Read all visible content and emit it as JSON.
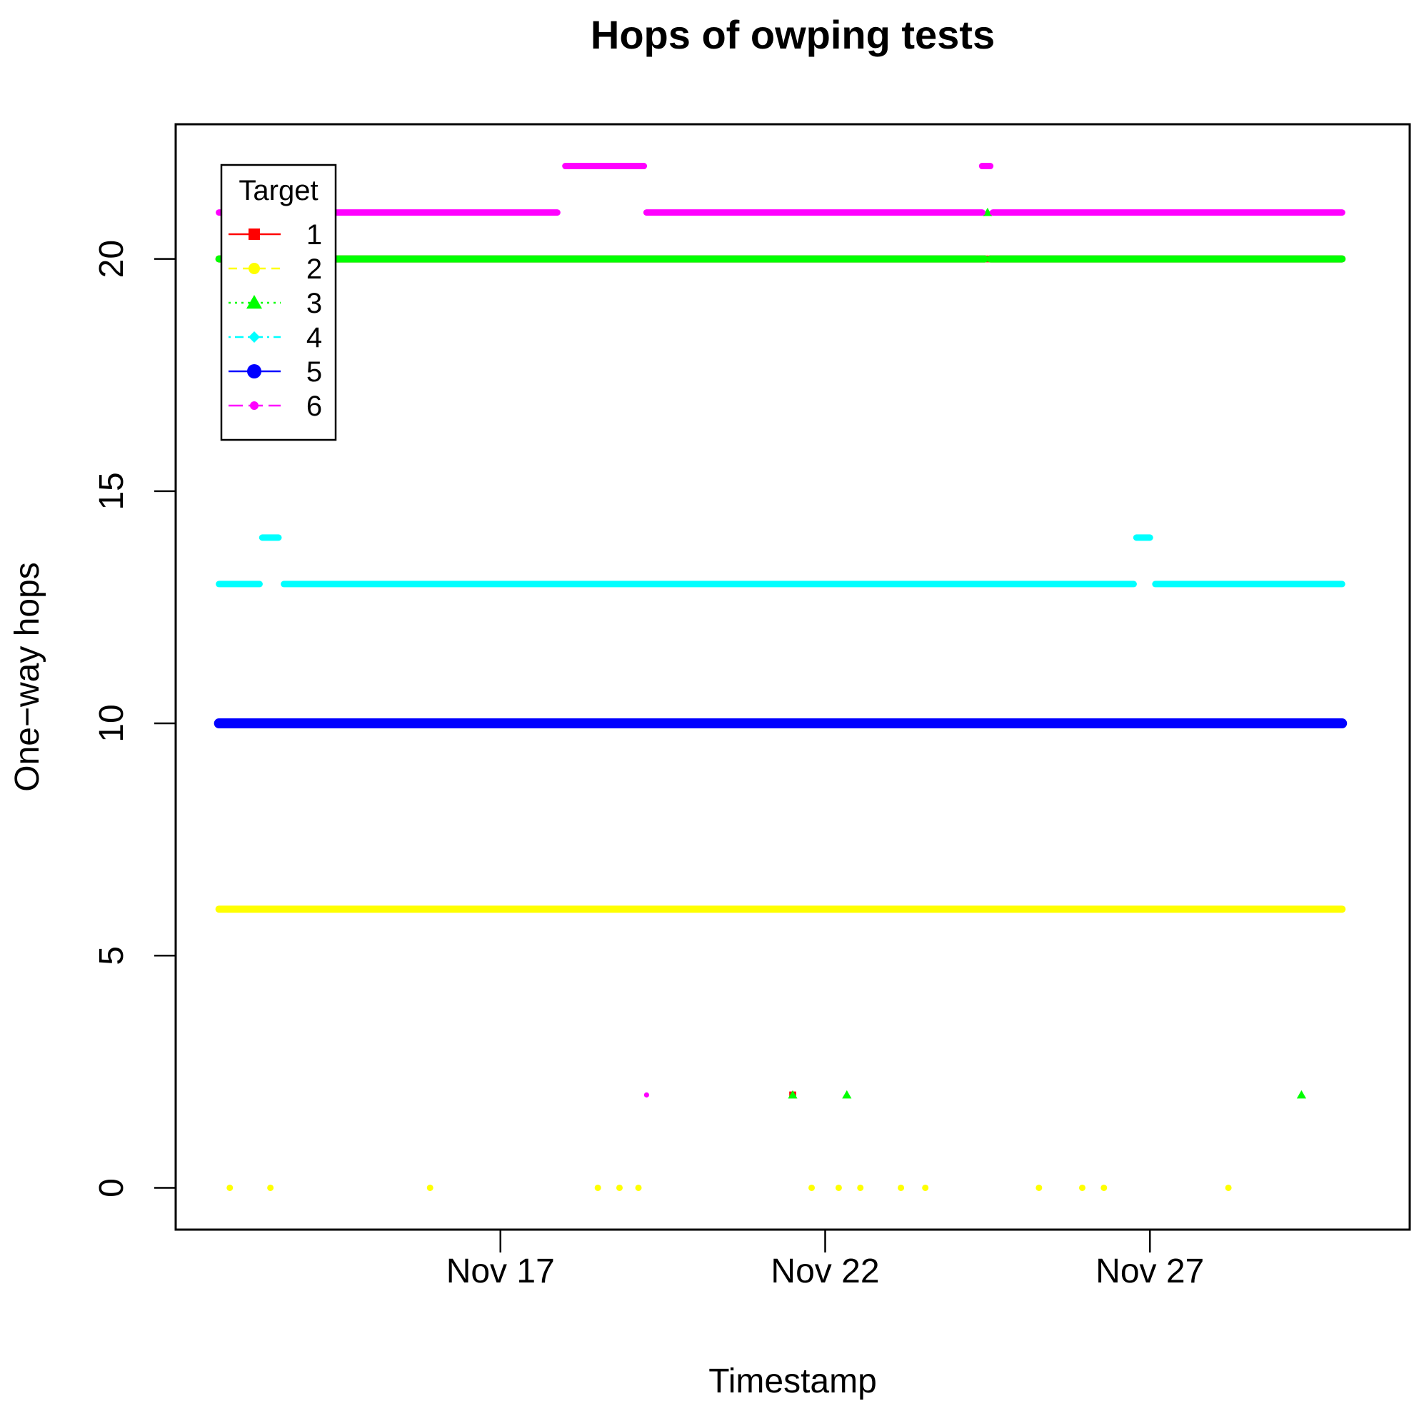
{
  "chart_data": {
    "type": "scatter",
    "title": "Hops of owping tests",
    "xlabel": "Timestamp",
    "ylabel": "One−way hops",
    "xlim": [
      "2024-11-12T00:00",
      "2024-12-01T00:00"
    ],
    "ylim": [
      -0.9,
      22.9
    ],
    "x_ticks": [
      {
        "date": "2024-11-17T00:00",
        "label": "Nov 17"
      },
      {
        "date": "2024-11-22T00:00",
        "label": "Nov 22"
      },
      {
        "date": "2024-11-27T00:00",
        "label": "Nov 27"
      }
    ],
    "y_ticks": [
      0,
      5,
      10,
      15,
      20
    ],
    "grid": false,
    "legend": {
      "title": "Target",
      "position": "top-left",
      "entries": [
        {
          "label": "1",
          "color": "#ff0000",
          "line": "solid",
          "marker": "square"
        },
        {
          "label": "2",
          "color": "#ffff00",
          "line": "dashed",
          "marker": "circle"
        },
        {
          "label": "3",
          "color": "#00ff00",
          "line": "dotted",
          "marker": "triangle"
        },
        {
          "label": "4",
          "color": "#00ffff",
          "line": "dotdash",
          "marker": "diamond"
        },
        {
          "label": "5",
          "color": "#0000ff",
          "line": "solid",
          "marker": "circle-large"
        },
        {
          "label": "6",
          "color": "#ff00ff",
          "line": "longdash",
          "marker": "circle-small"
        }
      ]
    },
    "series": [
      {
        "name": "1",
        "color": "#ff0000",
        "segments": [
          {
            "y": 20,
            "x_start": "2024-11-12T16:00",
            "x_end": "2024-11-24T11:00"
          },
          {
            "y": 20,
            "x_start": "2024-11-24T13:00",
            "x_end": "2024-11-29T23:00"
          }
        ],
        "points": [
          {
            "x": "2024-11-24T12:00",
            "y": 20
          },
          {
            "x": "2024-11-21T12:00",
            "y": 2
          }
        ]
      },
      {
        "name": "2",
        "color": "#ffff00",
        "segments": [
          {
            "y": 6,
            "x_start": "2024-11-12T16:00",
            "x_end": "2024-11-29T23:00"
          }
        ],
        "points": [
          {
            "x": "2024-11-12T20:00",
            "y": 0
          },
          {
            "x": "2024-11-13T11:00",
            "y": 0
          },
          {
            "x": "2024-11-15T22:00",
            "y": 0
          },
          {
            "x": "2024-11-18T12:00",
            "y": 0
          },
          {
            "x": "2024-11-18T20:00",
            "y": 0
          },
          {
            "x": "2024-11-19T03:00",
            "y": 0
          },
          {
            "x": "2024-11-21T19:00",
            "y": 0
          },
          {
            "x": "2024-11-22T05:00",
            "y": 0
          },
          {
            "x": "2024-11-22T13:00",
            "y": 0
          },
          {
            "x": "2024-11-23T04:00",
            "y": 0
          },
          {
            "x": "2024-11-23T13:00",
            "y": 0
          },
          {
            "x": "2024-11-25T07:00",
            "y": 0
          },
          {
            "x": "2024-11-25T23:00",
            "y": 0
          },
          {
            "x": "2024-11-26T07:00",
            "y": 0
          },
          {
            "x": "2024-11-28T05:00",
            "y": 0
          }
        ]
      },
      {
        "name": "3",
        "color": "#00ff00",
        "segments": [
          {
            "y": 20,
            "x_start": "2024-11-12T16:00",
            "x_end": "2024-11-24T11:00"
          },
          {
            "y": 20,
            "x_start": "2024-11-24T13:00",
            "x_end": "2024-11-29T23:00"
          }
        ],
        "points": [
          {
            "x": "2024-11-24T12:00",
            "y": 21
          },
          {
            "x": "2024-11-21T12:00",
            "y": 2
          },
          {
            "x": "2024-11-22T08:00",
            "y": 2
          },
          {
            "x": "2024-11-29T08:00",
            "y": 2
          }
        ]
      },
      {
        "name": "4",
        "color": "#00ffff",
        "segments": [
          {
            "y": 13,
            "x_start": "2024-11-12T16:00",
            "x_end": "2024-11-13T07:00"
          },
          {
            "y": 14,
            "x_start": "2024-11-13T08:00",
            "x_end": "2024-11-13T14:00"
          },
          {
            "y": 13,
            "x_start": "2024-11-13T16:00",
            "x_end": "2024-11-26T18:00"
          },
          {
            "y": 14,
            "x_start": "2024-11-26T19:00",
            "x_end": "2024-11-27T00:00"
          },
          {
            "y": 13,
            "x_start": "2024-11-27T02:00",
            "x_end": "2024-11-29T23:00"
          }
        ],
        "points": []
      },
      {
        "name": "5",
        "color": "#0000ff",
        "segments": [
          {
            "y": 10,
            "x_start": "2024-11-12T16:00",
            "x_end": "2024-11-29T23:00"
          }
        ],
        "points": []
      },
      {
        "name": "6",
        "color": "#ff00ff",
        "segments": [
          {
            "y": 21,
            "x_start": "2024-11-12T16:00",
            "x_end": "2024-11-17T21:00"
          },
          {
            "y": 22,
            "x_start": "2024-11-18T00:00",
            "x_end": "2024-11-19T05:00"
          },
          {
            "y": 21,
            "x_start": "2024-11-19T06:00",
            "x_end": "2024-11-24T10:00"
          },
          {
            "y": 22,
            "x_start": "2024-11-24T10:00",
            "x_end": "2024-11-24T13:00"
          },
          {
            "y": 21,
            "x_start": "2024-11-24T14:00",
            "x_end": "2024-11-29T23:00"
          }
        ],
        "points": [
          {
            "x": "2024-11-19T06:00",
            "y": 2
          }
        ]
      }
    ]
  }
}
